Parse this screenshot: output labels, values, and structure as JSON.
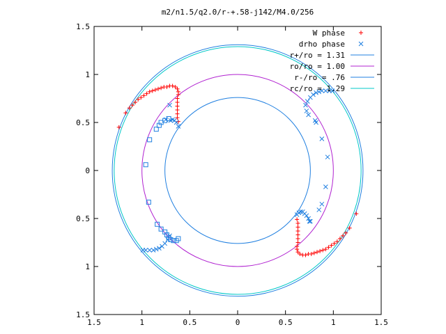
{
  "chart_data": {
    "type": "scatter",
    "title": "m2/n1.5/q2.0/r-+.58-j142/M4.0/256",
    "xlim": [
      -1.5,
      1.5
    ],
    "ylim": [
      -1.5,
      1.5
    ],
    "xticks": [
      -1.5,
      -1,
      -0.5,
      0,
      0.5,
      1,
      1.5
    ],
    "xtick_labels": [
      "1.5",
      "1",
      "0.5",
      "0",
      "0.5",
      "1",
      "1.5"
    ],
    "yticks": [
      1.5,
      1,
      0.5,
      0,
      -0.5,
      -1,
      -1.5
    ],
    "ytick_labels": [
      "1.5",
      "1",
      "0.5",
      "0",
      "0.5",
      "1",
      "1.5"
    ],
    "grid": false,
    "legend_position": "top-right",
    "legend": [
      {
        "label": "W phase",
        "marker": "plus",
        "color": "#ff0000"
      },
      {
        "label": "drho phase",
        "marker": "x",
        "color": "#1f7fe0"
      },
      {
        "label": "r+/ro = 1.31",
        "line": true,
        "color": "#1f7fe0"
      },
      {
        "label": "ro/ro = 1.00",
        "line": true,
        "color": "#b020d0"
      },
      {
        "label": "r-/ro = .76",
        "line": true,
        "color": "#1f7fe0"
      },
      {
        "label": "rc/ro = 1.29",
        "line": true,
        "color": "#00c8c8"
      }
    ],
    "circles": [
      {
        "name": "r+/ro",
        "r": 1.31,
        "color": "#1f7fe0"
      },
      {
        "name": "ro/ro",
        "r": 1.0,
        "color": "#b020d0"
      },
      {
        "name": "r-/ro",
        "r": 0.76,
        "color": "#1f7fe0"
      },
      {
        "name": "rc/ro",
        "r": 1.29,
        "color": "#00c8c8"
      }
    ],
    "series": [
      {
        "name": "W phase",
        "marker": "plus",
        "color": "#ff0000",
        "points": [
          [
            -1.24,
            0.45
          ],
          [
            -1.17,
            0.6
          ],
          [
            -1.13,
            0.65
          ],
          [
            -1.1,
            0.68
          ],
          [
            -1.07,
            0.71
          ],
          [
            -1.04,
            0.74
          ],
          [
            -1.01,
            0.76
          ],
          [
            -0.98,
            0.78
          ],
          [
            -0.95,
            0.8
          ],
          [
            -0.92,
            0.82
          ],
          [
            -0.89,
            0.83
          ],
          [
            -0.86,
            0.84
          ],
          [
            -0.83,
            0.85
          ],
          [
            -0.8,
            0.86
          ],
          [
            -0.77,
            0.87
          ],
          [
            -0.74,
            0.87
          ],
          [
            -0.71,
            0.88
          ],
          [
            -0.68,
            0.88
          ],
          [
            -0.65,
            0.87
          ],
          [
            -0.63,
            0.85
          ],
          [
            -0.62,
            0.82
          ],
          [
            -0.62,
            0.79
          ],
          [
            -0.63,
            0.75
          ],
          [
            -0.63,
            0.71
          ],
          [
            -0.63,
            0.67
          ],
          [
            -0.63,
            0.63
          ],
          [
            -0.63,
            0.59
          ],
          [
            -0.63,
            0.55
          ],
          [
            -0.62,
            0.51
          ],
          [
            1.24,
            -0.45
          ],
          [
            1.17,
            -0.6
          ],
          [
            1.13,
            -0.65
          ],
          [
            1.1,
            -0.68
          ],
          [
            1.07,
            -0.71
          ],
          [
            1.04,
            -0.74
          ],
          [
            1.01,
            -0.76
          ],
          [
            0.98,
            -0.78
          ],
          [
            0.95,
            -0.8
          ],
          [
            0.92,
            -0.82
          ],
          [
            0.89,
            -0.83
          ],
          [
            0.86,
            -0.84
          ],
          [
            0.83,
            -0.85
          ],
          [
            0.8,
            -0.86
          ],
          [
            0.77,
            -0.87
          ],
          [
            0.74,
            -0.87
          ],
          [
            0.71,
            -0.88
          ],
          [
            0.68,
            -0.88
          ],
          [
            0.65,
            -0.87
          ],
          [
            0.63,
            -0.85
          ],
          [
            0.62,
            -0.82
          ],
          [
            0.62,
            -0.79
          ],
          [
            0.63,
            -0.75
          ],
          [
            0.63,
            -0.71
          ],
          [
            0.63,
            -0.67
          ],
          [
            0.63,
            -0.63
          ],
          [
            0.63,
            -0.59
          ],
          [
            0.63,
            -0.55
          ],
          [
            0.62,
            -0.51
          ]
        ]
      },
      {
        "name": "drho phase",
        "marker": "x",
        "color": "#1f7fe0",
        "points": [
          [
            0.71,
            0.68
          ],
          [
            0.73,
            0.72
          ],
          [
            0.76,
            0.76
          ],
          [
            0.79,
            0.79
          ],
          [
            0.82,
            0.81
          ],
          [
            0.85,
            0.82
          ],
          [
            0.88,
            0.83
          ],
          [
            0.92,
            0.83
          ],
          [
            0.96,
            0.83
          ],
          [
            0.99,
            0.83
          ],
          [
            0.72,
            0.62
          ],
          [
            0.74,
            0.58
          ],
          [
            0.81,
            0.52
          ],
          [
            0.82,
            0.5
          ],
          [
            0.88,
            0.33
          ],
          [
            0.94,
            0.14
          ],
          [
            0.92,
            -0.17
          ],
          [
            0.88,
            -0.35
          ],
          [
            0.85,
            -0.41
          ],
          [
            0.75,
            -0.53
          ],
          [
            -0.75,
            0.53
          ],
          [
            -0.71,
            0.68
          ],
          [
            -0.71,
            -0.68
          ],
          [
            -0.73,
            -0.72
          ],
          [
            -0.76,
            -0.76
          ],
          [
            -0.79,
            -0.79
          ],
          [
            -0.82,
            -0.81
          ],
          [
            -0.85,
            -0.82
          ],
          [
            -0.88,
            -0.83
          ],
          [
            -0.92,
            -0.83
          ],
          [
            -0.96,
            -0.83
          ],
          [
            -0.99,
            -0.83
          ],
          [
            0.62,
            -0.46
          ],
          [
            0.64,
            -0.44
          ],
          [
            0.66,
            -0.43
          ],
          [
            0.68,
            -0.43
          ],
          [
            0.7,
            -0.45
          ],
          [
            0.72,
            -0.47
          ],
          [
            0.74,
            -0.5
          ],
          [
            0.76,
            -0.53
          ],
          [
            -0.62,
            0.46
          ],
          [
            -0.64,
            0.5
          ],
          [
            -0.66,
            0.52
          ],
          [
            -0.68,
            0.53
          ],
          [
            -0.7,
            0.52
          ]
        ]
      },
      {
        "name": "drho phase (squares)",
        "marker": "square",
        "color": "#1f7fe0",
        "points": [
          [
            -0.8,
            0.5
          ],
          [
            -0.82,
            0.47
          ],
          [
            -0.85,
            0.43
          ],
          [
            -0.92,
            0.32
          ],
          [
            -0.96,
            0.06
          ],
          [
            -0.93,
            -0.33
          ],
          [
            -0.84,
            -0.56
          ],
          [
            -0.8,
            -0.61
          ],
          [
            -0.76,
            -0.64
          ],
          [
            -0.74,
            -0.67
          ],
          [
            -0.72,
            -0.7
          ],
          [
            -0.7,
            -0.72
          ],
          [
            -0.67,
            -0.73
          ],
          [
            -0.64,
            -0.73
          ],
          [
            -0.62,
            -0.71
          ],
          [
            -0.72,
            0.54
          ],
          [
            -0.76,
            0.52
          ]
        ]
      }
    ]
  }
}
